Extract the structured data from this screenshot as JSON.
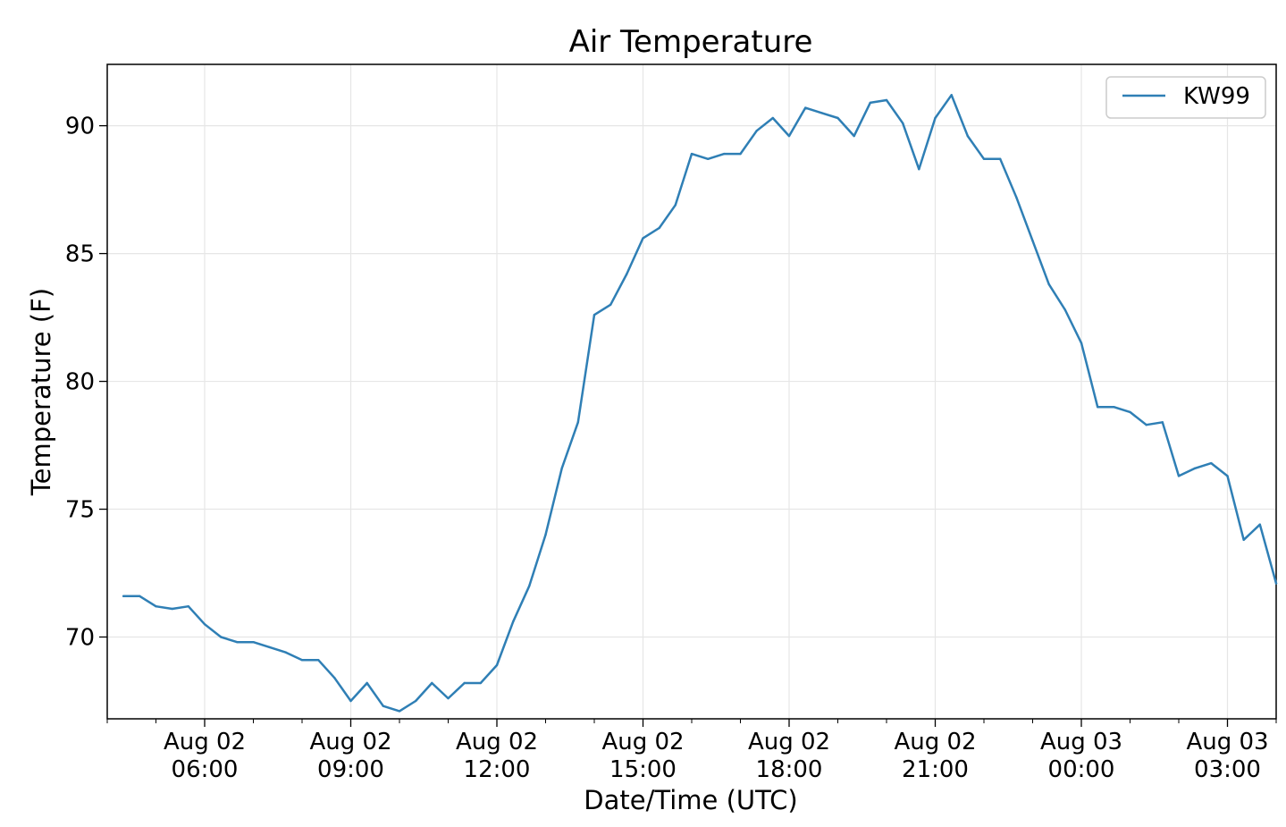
{
  "chart_data": {
    "type": "line",
    "title": "Air Temperature",
    "xlabel": "Date/Time (UTC)",
    "ylabel": "Temperature (F)",
    "x_unit": "UTC datetime",
    "xlim": [
      "2023-08-02T04:00",
      "2023-08-03T04:00"
    ],
    "ylim": [
      66.8,
      92.4
    ],
    "grid": true,
    "legend_position": "upper right",
    "x_ticks": [
      {
        "x": "2023-08-02T06:00",
        "line1": "Aug 02",
        "line2": "06:00"
      },
      {
        "x": "2023-08-02T09:00",
        "line1": "Aug 02",
        "line2": "09:00"
      },
      {
        "x": "2023-08-02T12:00",
        "line1": "Aug 02",
        "line2": "12:00"
      },
      {
        "x": "2023-08-02T15:00",
        "line1": "Aug 02",
        "line2": "15:00"
      },
      {
        "x": "2023-08-02T18:00",
        "line1": "Aug 02",
        "line2": "18:00"
      },
      {
        "x": "2023-08-02T21:00",
        "line1": "Aug 02",
        "line2": "21:00"
      },
      {
        "x": "2023-08-03T00:00",
        "line1": "Aug 03",
        "line2": "00:00"
      },
      {
        "x": "2023-08-03T03:00",
        "line1": "Aug 03",
        "line2": "03:00"
      }
    ],
    "y_ticks": [
      70,
      75,
      80,
      85,
      90
    ],
    "series": [
      {
        "name": "KW99",
        "color": "#2f7fb5",
        "points": [
          [
            "2023-08-02T04:20",
            71.6
          ],
          [
            "2023-08-02T04:40",
            71.6
          ],
          [
            "2023-08-02T05:00",
            71.2
          ],
          [
            "2023-08-02T05:20",
            71.1
          ],
          [
            "2023-08-02T05:40",
            71.2
          ],
          [
            "2023-08-02T06:00",
            70.5
          ],
          [
            "2023-08-02T06:20",
            70.0
          ],
          [
            "2023-08-02T06:40",
            69.8
          ],
          [
            "2023-08-02T07:00",
            69.8
          ],
          [
            "2023-08-02T07:20",
            69.6
          ],
          [
            "2023-08-02T07:40",
            69.4
          ],
          [
            "2023-08-02T08:00",
            69.1
          ],
          [
            "2023-08-02T08:20",
            69.1
          ],
          [
            "2023-08-02T08:40",
            68.4
          ],
          [
            "2023-08-02T09:00",
            67.5
          ],
          [
            "2023-08-02T09:20",
            68.2
          ],
          [
            "2023-08-02T09:40",
            67.3
          ],
          [
            "2023-08-02T10:00",
            67.1
          ],
          [
            "2023-08-02T10:20",
            67.5
          ],
          [
            "2023-08-02T10:40",
            68.2
          ],
          [
            "2023-08-02T11:00",
            67.6
          ],
          [
            "2023-08-02T11:20",
            68.2
          ],
          [
            "2023-08-02T11:40",
            68.2
          ],
          [
            "2023-08-02T12:00",
            68.9
          ],
          [
            "2023-08-02T12:20",
            70.6
          ],
          [
            "2023-08-02T12:40",
            72.0
          ],
          [
            "2023-08-02T13:00",
            74.0
          ],
          [
            "2023-08-02T13:20",
            76.6
          ],
          [
            "2023-08-02T13:40",
            78.4
          ],
          [
            "2023-08-02T14:00",
            82.6
          ],
          [
            "2023-08-02T14:20",
            83.0
          ],
          [
            "2023-08-02T14:40",
            84.2
          ],
          [
            "2023-08-02T15:00",
            85.6
          ],
          [
            "2023-08-02T15:20",
            86.0
          ],
          [
            "2023-08-02T15:40",
            86.9
          ],
          [
            "2023-08-02T16:00",
            88.9
          ],
          [
            "2023-08-02T16:20",
            88.7
          ],
          [
            "2023-08-02T16:40",
            88.9
          ],
          [
            "2023-08-02T17:00",
            88.9
          ],
          [
            "2023-08-02T17:20",
            89.8
          ],
          [
            "2023-08-02T17:40",
            90.3
          ],
          [
            "2023-08-02T18:00",
            89.6
          ],
          [
            "2023-08-02T18:20",
            90.7
          ],
          [
            "2023-08-02T18:40",
            90.5
          ],
          [
            "2023-08-02T19:00",
            90.3
          ],
          [
            "2023-08-02T19:20",
            89.6
          ],
          [
            "2023-08-02T19:40",
            90.9
          ],
          [
            "2023-08-02T20:00",
            91.0
          ],
          [
            "2023-08-02T20:20",
            90.1
          ],
          [
            "2023-08-02T20:40",
            88.3
          ],
          [
            "2023-08-02T21:00",
            90.3
          ],
          [
            "2023-08-02T21:20",
            91.2
          ],
          [
            "2023-08-02T21:40",
            89.6
          ],
          [
            "2023-08-02T22:00",
            88.7
          ],
          [
            "2023-08-02T22:20",
            88.7
          ],
          [
            "2023-08-02T22:40",
            87.2
          ],
          [
            "2023-08-02T23:00",
            85.5
          ],
          [
            "2023-08-02T23:20",
            83.8
          ],
          [
            "2023-08-02T23:40",
            82.8
          ],
          [
            "2023-08-03T00:00",
            81.5
          ],
          [
            "2023-08-03T00:20",
            79.0
          ],
          [
            "2023-08-03T00:40",
            79.0
          ],
          [
            "2023-08-03T01:00",
            78.8
          ],
          [
            "2023-08-03T01:20",
            78.3
          ],
          [
            "2023-08-03T01:40",
            78.4
          ],
          [
            "2023-08-03T02:00",
            76.3
          ],
          [
            "2023-08-03T02:20",
            76.6
          ],
          [
            "2023-08-03T02:40",
            76.8
          ],
          [
            "2023-08-03T03:00",
            76.3
          ],
          [
            "2023-08-03T03:20",
            73.8
          ],
          [
            "2023-08-03T03:40",
            74.4
          ],
          [
            "2023-08-03T04:00",
            72.1
          ]
        ]
      }
    ]
  }
}
